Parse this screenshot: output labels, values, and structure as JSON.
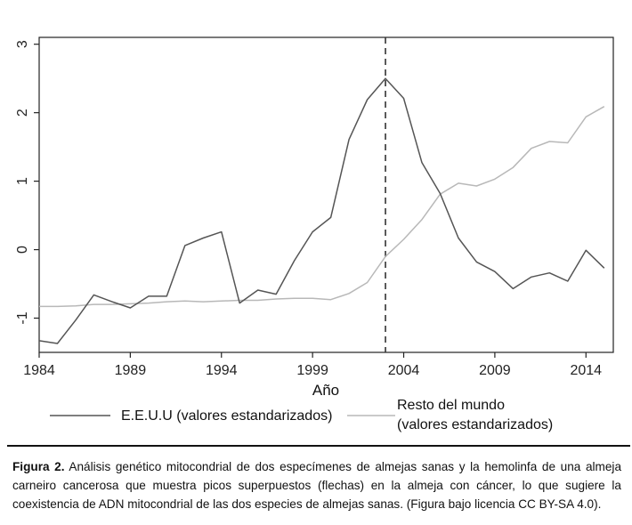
{
  "chart_data": {
    "type": "line",
    "title": "",
    "xlabel": "Año",
    "ylabel": "",
    "xlim": [
      1984,
      2015.5
    ],
    "ylim": [
      -1.5,
      3.1
    ],
    "x_ticks": [
      1984,
      1989,
      1994,
      1999,
      2004,
      2009,
      2014
    ],
    "y_ticks": [
      -1,
      0,
      1,
      2,
      3
    ],
    "reference_line": {
      "x": 2003,
      "style": "dashed"
    },
    "x": [
      1984,
      1985,
      1986,
      1987,
      1988,
      1989,
      1990,
      1991,
      1992,
      1993,
      1994,
      1995,
      1996,
      1997,
      1998,
      1999,
      2000,
      2001,
      2002,
      2003,
      2004,
      2005,
      2006,
      2007,
      2008,
      2009,
      2010,
      2011,
      2012,
      2013,
      2014,
      2015
    ],
    "series": [
      {
        "name": "E.E.U.U (valores estandarizados)",
        "color": "#555555",
        "values": [
          -1.33,
          -1.37,
          -1.03,
          -0.66,
          -0.76,
          -0.85,
          -0.68,
          -0.68,
          0.06,
          0.17,
          0.26,
          -0.78,
          -0.59,
          -0.65,
          -0.16,
          0.26,
          0.47,
          1.61,
          2.19,
          2.5,
          2.21,
          1.27,
          0.82,
          0.17,
          -0.18,
          -0.32,
          -0.57,
          -0.4,
          -0.34,
          -0.46,
          -0.01,
          -0.27
        ]
      },
      {
        "name": "Resto del mundo (valores estandarizados)",
        "color": "#b8b8b8",
        "values": [
          -0.83,
          -0.83,
          -0.82,
          -0.8,
          -0.8,
          -0.79,
          -0.78,
          -0.76,
          -0.75,
          -0.76,
          -0.75,
          -0.74,
          -0.74,
          -0.72,
          -0.71,
          -0.71,
          -0.73,
          -0.64,
          -0.48,
          -0.1,
          0.15,
          0.44,
          0.81,
          0.97,
          0.93,
          1.03,
          1.2,
          1.48,
          1.58,
          1.56,
          1.94,
          2.09
        ]
      }
    ],
    "legend": {
      "position": "bottom",
      "entries": [
        {
          "line1": "E.E.U.U (valores estandarizados)",
          "line2": ""
        },
        {
          "line1": "Resto del mundo",
          "line2": "(valores estandarizados)"
        }
      ]
    }
  },
  "caption": {
    "label": "Figura 2.",
    "text": " Análisis genético mitocondrial de dos especímenes de almejas sanas y la hemolinfa de una almeja carneiro cancerosa que muestra picos superpuestos (flechas) en la almeja con cáncer, lo que sugiere la coexistencia de ADN mitocondrial de las dos especies de almejas sanas. (Figura bajo licencia CC BY-SA 4.0)."
  }
}
